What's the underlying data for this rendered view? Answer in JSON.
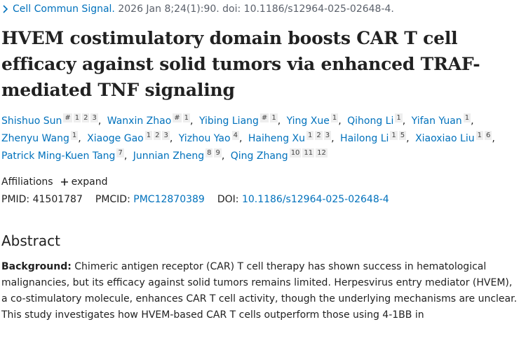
{
  "citation": {
    "journal": "Cell Commun Signal.",
    "details": "2026 Jan 8;24(1):90. doi: 10.1186/s12964-025-02648-4."
  },
  "title": "HVEM costimulatory domain boosts CAR T cell efficacy against solid tumors via enhanced TRAF-mediated TNF signaling",
  "authors": [
    {
      "name": "Shishuo Sun",
      "sup": [
        "#",
        "1",
        "2",
        "3"
      ]
    },
    {
      "name": "Wanxin Zhao",
      "sup": [
        "#",
        "1"
      ]
    },
    {
      "name": "Yibing Liang",
      "sup": [
        "#",
        "1"
      ]
    },
    {
      "name": "Ying Xue",
      "sup": [
        "1"
      ]
    },
    {
      "name": "Qihong Li",
      "sup": [
        "1"
      ]
    },
    {
      "name": "Yifan Yuan",
      "sup": [
        "1"
      ]
    },
    {
      "name": "Zhenyu Wang",
      "sup": [
        "1"
      ]
    },
    {
      "name": "Xiaoge Gao",
      "sup": [
        "1",
        "2",
        "3"
      ]
    },
    {
      "name": "Yizhou Yao",
      "sup": [
        "4"
      ]
    },
    {
      "name": "Haiheng Xu",
      "sup": [
        "1",
        "2",
        "3"
      ]
    },
    {
      "name": "Hailong Li",
      "sup": [
        "1",
        "5"
      ]
    },
    {
      "name": "Xiaoxiao Liu",
      "sup": [
        "1",
        "6"
      ]
    },
    {
      "name": "Patrick Ming-Kuen Tang",
      "sup": [
        "7"
      ]
    },
    {
      "name": "Junnian Zheng",
      "sup": [
        "8",
        "9"
      ]
    },
    {
      "name": "Qing Zhang",
      "sup": [
        "10",
        "11",
        "12"
      ]
    }
  ],
  "affiliations": {
    "label": "Affiliations",
    "action": "expand"
  },
  "identifiers": [
    {
      "label": "PMID:",
      "value": "41501787"
    },
    {
      "label": "PMCID:",
      "value": "PMC12870389"
    },
    {
      "label": "DOI:",
      "value": "10.1186/s12964-025-02648-4"
    }
  ],
  "abstract": {
    "heading": "Abstract",
    "label": "Background:",
    "text": "Chimeric antigen receptor (CAR) T cell therapy has shown success in hematological malignancies, but its efficacy against solid tumors remains limited. Herpesvirus entry mediator (HVEM), a co-stimulatory molecule, enhances CAR T cell activity, though the underlying mechanisms are unclear. This study investigates how HVEM-based CAR T cells outperform those using 4-1BB in"
  }
}
